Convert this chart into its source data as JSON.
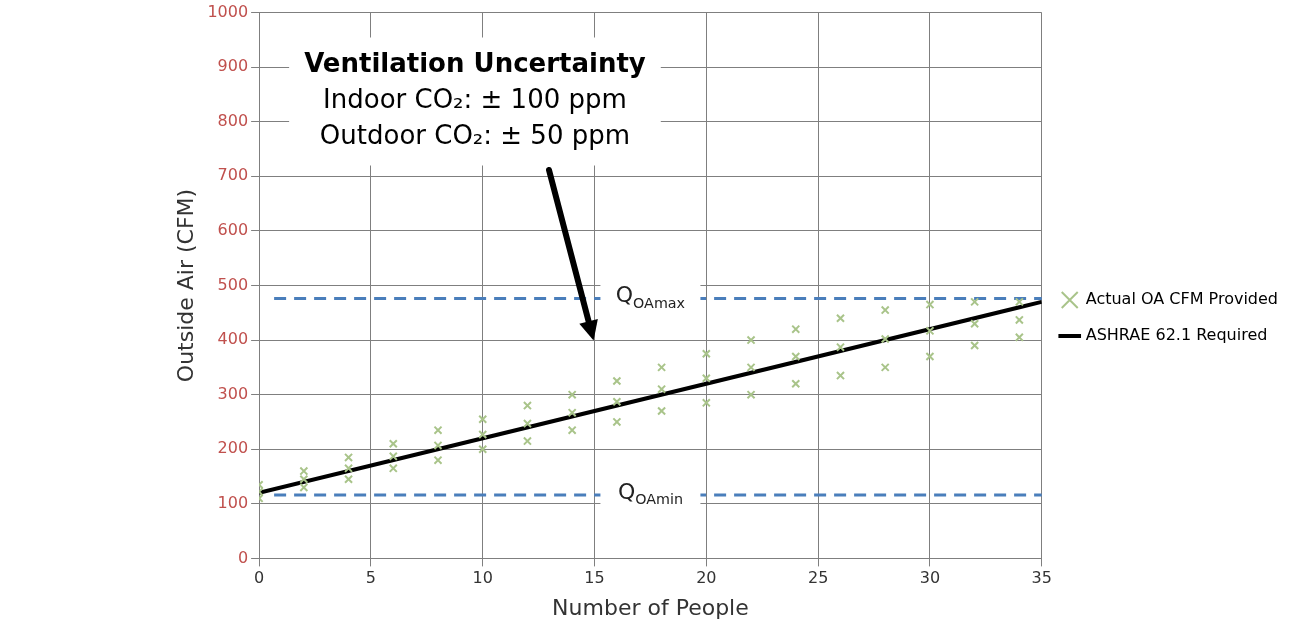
{
  "chart_data": {
    "type": "scatter",
    "xlabel": "Number of People",
    "ylabel": "Outside Air (CFM)",
    "xlim": [
      0,
      35
    ],
    "xticks": [
      0,
      5,
      10,
      15,
      20,
      25,
      30,
      35
    ],
    "ylim": [
      0,
      1000
    ],
    "yticks": [
      0,
      100,
      200,
      300,
      400,
      500,
      600,
      700,
      800,
      900,
      1000
    ],
    "grid": true,
    "legend": "right",
    "series": [
      {
        "name": "Actual OA CFM Provided",
        "marker": "cross",
        "color": "#a9c48a",
        "x": [
          0,
          0,
          0,
          2,
          2,
          2,
          4,
          4,
          4,
          6,
          6,
          6,
          8,
          8,
          8,
          10,
          10,
          10,
          12,
          12,
          12,
          14,
          14,
          14,
          16,
          16,
          16,
          18,
          18,
          18,
          20,
          20,
          20,
          22,
          22,
          22,
          24,
          24,
          24,
          26,
          26,
          26,
          28,
          28,
          28,
          30,
          30,
          30,
          32,
          32,
          32,
          34,
          34,
          34
        ],
        "values": [
          110,
          122,
          135,
          130,
          145,
          160,
          145,
          165,
          185,
          165,
          187,
          210,
          180,
          207,
          235,
          200,
          227,
          255,
          215,
          247,
          280,
          235,
          267,
          300,
          250,
          287,
          325,
          270,
          310,
          350,
          285,
          330,
          375,
          300,
          350,
          400,
          320,
          370,
          420,
          335,
          387,
          440,
          350,
          402,
          455,
          370,
          417,
          465,
          390,
          430,
          470,
          405,
          437,
          470
        ]
      },
      {
        "name": "ASHRAE 62.1 Required",
        "type": "line",
        "marker": "none",
        "color": "#000000",
        "x": [
          0,
          35
        ],
        "values": [
          120,
          470
        ]
      }
    ],
    "ref_lines": [
      {
        "axis": "y",
        "value": 476,
        "label": "Q$_{OAmax}$",
        "color": "#4a7ebb",
        "line_style": "dashed"
      },
      {
        "axis": "y",
        "value": 116,
        "label": "Q$_{OAmin}$",
        "color": "#4a7ebb",
        "line_style": "dashed"
      }
    ],
    "annotations": [
      "Ventilation Uncertainty",
      "Indoor CO₂: ± 100 ppm",
      "Outdoor CO₂: ± 50 ppm"
    ]
  }
}
